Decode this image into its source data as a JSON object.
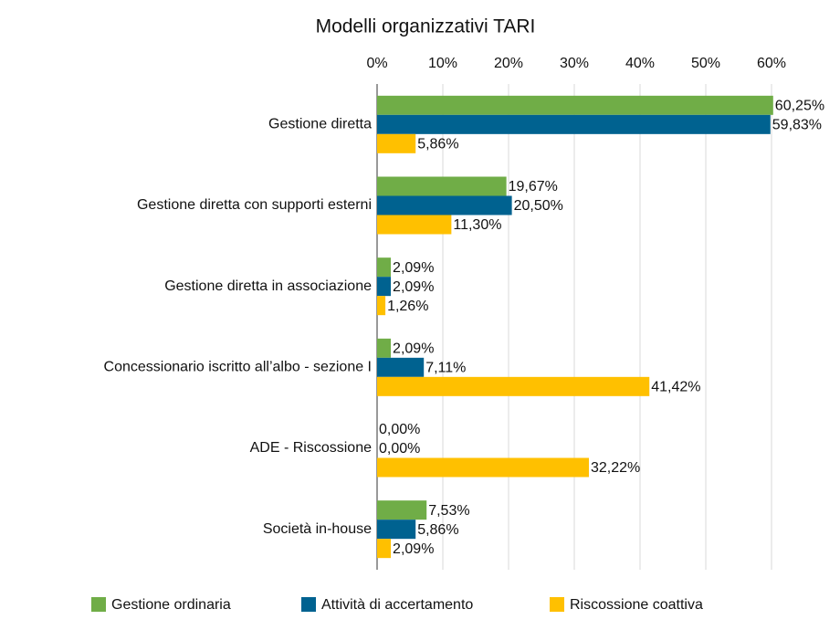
{
  "chart_data": {
    "type": "bar",
    "orientation": "horizontal",
    "title": "Modelli organizzativi TARI",
    "categories": [
      "Gestione diretta",
      "Gestione diretta con supporti esterni",
      "Gestione diretta in associazione",
      "Concessionario iscritto all’albo - sezione I",
      "ADE - Riscossione",
      "Società in-house"
    ],
    "series": [
      {
        "name": "Gestione ordinaria",
        "color": "#70ad47",
        "values": [
          60.25,
          19.67,
          2.09,
          2.09,
          0,
          7.53
        ],
        "value_labels": [
          "60,25%",
          "19,67%",
          "2,09%",
          "2,09%",
          "0,00%",
          "7,53%"
        ]
      },
      {
        "name": "Attività di accertamento",
        "color": "#006290",
        "values": [
          59.83,
          20.5,
          2.09,
          7.11,
          0,
          5.86
        ],
        "value_labels": [
          "59,83%",
          "20,50%",
          "2,09%",
          "7,11%",
          "0,00%",
          "5,86%"
        ]
      },
      {
        "name": "Riscossione coattiva",
        "color": "#ffc000",
        "values": [
          5.86,
          11.3,
          1.26,
          41.42,
          32.22,
          2.09
        ],
        "value_labels": [
          "5,86%",
          "11,30%",
          "1,26%",
          "41,42%",
          "32,22%",
          "2,09%"
        ]
      }
    ],
    "xlim": [
      0,
      60
    ],
    "xticks": [
      {
        "value": 0,
        "label": "0%"
      },
      {
        "value": 10,
        "label": "10%"
      },
      {
        "value": 20,
        "label": "20%"
      },
      {
        "value": 30,
        "label": "30%"
      },
      {
        "value": 40,
        "label": "40%"
      },
      {
        "value": 50,
        "label": "50%"
      },
      {
        "value": 60,
        "label": "60%"
      }
    ],
    "grid": true,
    "legend": "bottom"
  }
}
